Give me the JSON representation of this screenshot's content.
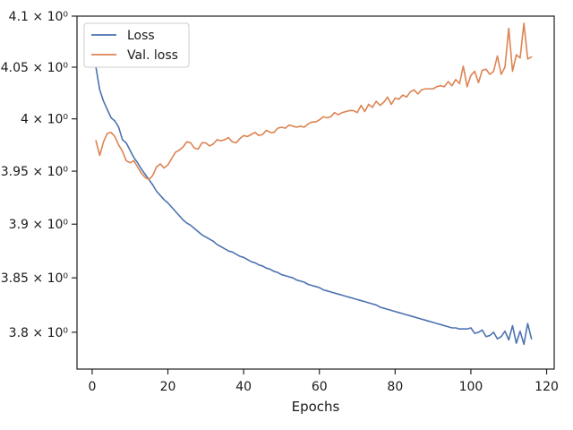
{
  "chart_data": {
    "type": "line",
    "title": "",
    "xlabel": "Epochs",
    "ylabel": "",
    "xlim": [
      -4,
      122
    ],
    "ylim": [
      3.7665,
      4.1
    ],
    "y_scale": "log",
    "grid": false,
    "legend_position": "top-left",
    "x_ticks": [
      0,
      20,
      40,
      60,
      80,
      100,
      120
    ],
    "x_tick_labels": [
      "0",
      "20",
      "40",
      "60",
      "80",
      "100",
      "120"
    ],
    "y_ticks": [
      3.8,
      3.85,
      3.9,
      3.95,
      4.0,
      4.05,
      4.1
    ],
    "y_tick_labels": [
      "3.8 × 10⁰",
      "3.85 × 10⁰",
      "3.9 × 10⁰",
      "3.95 × 10⁰",
      "4 × 10⁰",
      "4.05 × 10⁰",
      "4.1 × 10⁰"
    ],
    "series": [
      {
        "name": "Loss",
        "color": "#4c72b0",
        "x": [
          1,
          2,
          3,
          4,
          5,
          6,
          7,
          8,
          9,
          10,
          11,
          12,
          13,
          14,
          15,
          16,
          17,
          18,
          19,
          20,
          21,
          22,
          23,
          24,
          25,
          26,
          27,
          28,
          29,
          30,
          31,
          32,
          33,
          34,
          35,
          36,
          37,
          38,
          39,
          40,
          41,
          42,
          43,
          44,
          45,
          46,
          47,
          48,
          49,
          50,
          51,
          52,
          53,
          54,
          55,
          56,
          57,
          58,
          59,
          60,
          61,
          62,
          63,
          64,
          65,
          66,
          67,
          68,
          69,
          70,
          71,
          72,
          73,
          74,
          75,
          76,
          77,
          78,
          79,
          80,
          81,
          82,
          83,
          84,
          85,
          86,
          87,
          88,
          89,
          90,
          91,
          92,
          93,
          94,
          95,
          96,
          97,
          98,
          99,
          100,
          101,
          102,
          103,
          104,
          105,
          106,
          107,
          108,
          109,
          110,
          111,
          112,
          113,
          114,
          115,
          116
        ],
        "values": [
          4.05,
          4.028,
          4.017,
          4.009,
          4.001,
          3.998,
          3.992,
          3.98,
          3.977,
          3.97,
          3.963,
          3.958,
          3.952,
          3.947,
          3.942,
          3.937,
          3.931,
          3.927,
          3.923,
          3.92,
          3.916,
          3.912,
          3.908,
          3.904,
          3.901,
          3.899,
          3.896,
          3.893,
          3.89,
          3.888,
          3.886,
          3.884,
          3.881,
          3.879,
          3.877,
          3.875,
          3.874,
          3.872,
          3.87,
          3.869,
          3.867,
          3.865,
          3.864,
          3.862,
          3.861,
          3.859,
          3.858,
          3.856,
          3.855,
          3.853,
          3.852,
          3.851,
          3.85,
          3.848,
          3.847,
          3.846,
          3.844,
          3.843,
          3.842,
          3.841,
          3.839,
          3.838,
          3.837,
          3.836,
          3.835,
          3.834,
          3.833,
          3.832,
          3.831,
          3.83,
          3.829,
          3.828,
          3.827,
          3.826,
          3.825,
          3.823,
          3.822,
          3.821,
          3.82,
          3.819,
          3.818,
          3.817,
          3.816,
          3.815,
          3.814,
          3.813,
          3.812,
          3.811,
          3.81,
          3.809,
          3.808,
          3.807,
          3.806,
          3.805,
          3.804,
          3.804,
          3.803,
          3.803,
          3.803,
          3.804,
          3.799,
          3.8,
          3.802,
          3.796,
          3.797,
          3.8,
          3.794,
          3.796,
          3.801,
          3.793,
          3.806,
          3.79,
          3.801,
          3.789,
          3.808,
          3.794
        ]
      },
      {
        "name": "Val. loss",
        "color": "#dd8452",
        "x": [
          1,
          2,
          3,
          4,
          5,
          6,
          7,
          8,
          9,
          10,
          11,
          12,
          13,
          14,
          15,
          16,
          17,
          18,
          19,
          20,
          21,
          22,
          23,
          24,
          25,
          26,
          27,
          28,
          29,
          30,
          31,
          32,
          33,
          34,
          35,
          36,
          37,
          38,
          39,
          40,
          41,
          42,
          43,
          44,
          45,
          46,
          47,
          48,
          49,
          50,
          51,
          52,
          53,
          54,
          55,
          56,
          57,
          58,
          59,
          60,
          61,
          62,
          63,
          64,
          65,
          66,
          67,
          68,
          69,
          70,
          71,
          72,
          73,
          74,
          75,
          76,
          77,
          78,
          79,
          80,
          81,
          82,
          83,
          84,
          85,
          86,
          87,
          88,
          89,
          90,
          91,
          92,
          93,
          94,
          95,
          96,
          97,
          98,
          99,
          100,
          101,
          102,
          103,
          104,
          105,
          106,
          107,
          108,
          109,
          110,
          111,
          112,
          113,
          114,
          115,
          116
        ],
        "values": [
          3.979,
          3.965,
          3.978,
          3.986,
          3.987,
          3.983,
          3.975,
          3.969,
          3.96,
          3.958,
          3.96,
          3.954,
          3.948,
          3.944,
          3.942,
          3.946,
          3.954,
          3.957,
          3.953,
          3.956,
          3.962,
          3.968,
          3.97,
          3.973,
          3.978,
          3.977,
          3.972,
          3.971,
          3.977,
          3.977,
          3.974,
          3.976,
          3.98,
          3.979,
          3.98,
          3.982,
          3.978,
          3.977,
          3.981,
          3.984,
          3.983,
          3.985,
          3.987,
          3.984,
          3.985,
          3.989,
          3.987,
          3.987,
          3.991,
          3.992,
          3.991,
          3.994,
          3.993,
          3.992,
          3.993,
          3.992,
          3.995,
          3.997,
          3.997,
          3.999,
          4.002,
          4.001,
          4.002,
          4.006,
          4.004,
          4.006,
          4.007,
          4.008,
          4.008,
          4.006,
          4.013,
          4.007,
          4.014,
          4.011,
          4.017,
          4.013,
          4.016,
          4.021,
          4.014,
          4.02,
          4.019,
          4.023,
          4.021,
          4.026,
          4.028,
          4.024,
          4.028,
          4.029,
          4.029,
          4.029,
          4.031,
          4.032,
          4.031,
          4.036,
          4.032,
          4.038,
          4.034,
          4.051,
          4.031,
          4.042,
          4.046,
          4.035,
          4.047,
          4.048,
          4.043,
          4.046,
          4.061,
          4.043,
          4.05,
          4.088,
          4.046,
          4.062,
          4.059,
          4.093,
          4.058,
          4.06
        ]
      }
    ]
  }
}
